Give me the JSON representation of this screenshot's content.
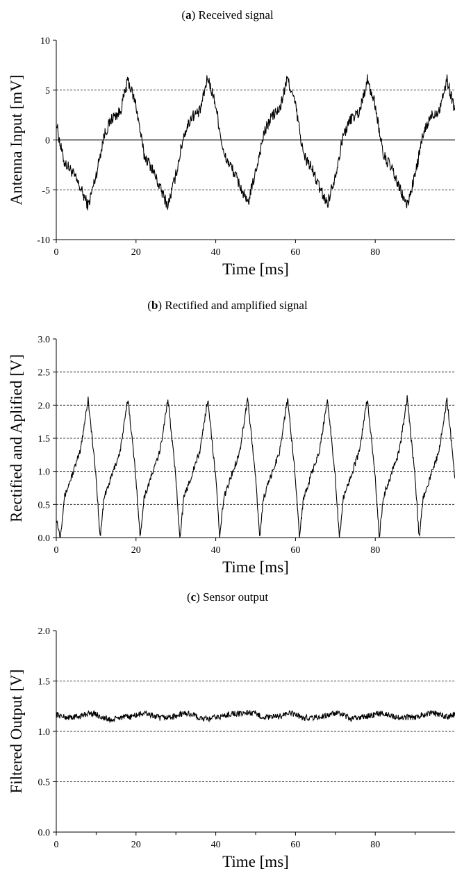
{
  "chart_data": [
    {
      "id": "a",
      "type": "line",
      "title_letter": "a",
      "title_text": "Received signal",
      "xlabel": "Time [ms]",
      "ylabel": "Antenna Input [mV]",
      "xlim": [
        0,
        100
      ],
      "ylim": [
        -10,
        10
      ],
      "xticks": [
        "0",
        "20",
        "40",
        "60",
        "80"
      ],
      "xtick_values": [
        0,
        20,
        40,
        60,
        80
      ],
      "yticks": [
        "-10",
        "-5",
        "0",
        "5",
        "10"
      ],
      "ytick_values": [
        -10,
        -5,
        0,
        5,
        10
      ],
      "dashed_grid_at": [
        -5,
        5
      ],
      "solid_line_at": [
        0
      ],
      "noisy": true,
      "noise_amplitude": 0.6,
      "series": [
        {
          "x": [
            0,
            1,
            2,
            4,
            6,
            8,
            10,
            12,
            14,
            16,
            18,
            20,
            22,
            24,
            26,
            28,
            30,
            32,
            34,
            36,
            38,
            40,
            42,
            44,
            46,
            48,
            50,
            52,
            54,
            56,
            58,
            60,
            62,
            64,
            66,
            68,
            70,
            72,
            74,
            76,
            78,
            80,
            82,
            84,
            86,
            88,
            90,
            92,
            94,
            96,
            98,
            100
          ],
          "y": [
            1.8,
            -0.5,
            -2.2,
            -3.2,
            -4.8,
            -6.6,
            -3.5,
            0.5,
            2.2,
            2.8,
            6.0,
            3.5,
            -1.5,
            -2.8,
            -4.8,
            -6.6,
            -3.5,
            0.5,
            2.4,
            2.8,
            6.3,
            3.5,
            -1.5,
            -2.8,
            -4.5,
            -6.5,
            -3.2,
            0.5,
            2.4,
            3.0,
            6.2,
            3.5,
            -1.5,
            -2.8,
            -4.8,
            -6.4,
            -3.5,
            0.5,
            2.2,
            2.8,
            6.0,
            3.5,
            -1.5,
            -2.8,
            -4.8,
            -6.6,
            -3.5,
            0.5,
            2.4,
            3.0,
            6.0,
            3.0
          ]
        }
      ]
    },
    {
      "id": "b",
      "type": "line",
      "title_letter": "b",
      "title_text": "Rectified and amplified signal",
      "xlabel": "Time [ms]",
      "ylabel": "Rectified and Aplified [V]",
      "xlim": [
        0,
        100
      ],
      "ylim": [
        0,
        3
      ],
      "xticks": [
        "0",
        "20",
        "40",
        "60",
        "80"
      ],
      "xtick_values": [
        0,
        20,
        40,
        60,
        80
      ],
      "yticks": [
        "0.0",
        "0.5",
        "1.0",
        "1.5",
        "2.0",
        "2.5",
        "3.0"
      ],
      "ytick_values": [
        0,
        0.5,
        1,
        1.5,
        2,
        2.5,
        3
      ],
      "dashed_grid_at": [
        0.5,
        1.0,
        1.5,
        2.0,
        2.5
      ],
      "solid_line_at": [],
      "noisy": true,
      "noise_amplitude": 0.05,
      "series": [
        {
          "x": [
            0,
            1,
            2,
            4,
            6,
            8,
            10,
            11,
            12,
            14,
            16,
            18,
            20,
            21,
            22,
            24,
            26,
            28,
            30,
            31,
            32,
            34,
            36,
            38,
            40,
            41,
            42,
            44,
            46,
            48,
            50,
            51,
            52,
            54,
            56,
            58,
            60,
            61,
            62,
            64,
            66,
            68,
            70,
            71,
            72,
            74,
            76,
            78,
            80,
            81,
            82,
            84,
            86,
            88,
            90,
            91,
            92,
            94,
            96,
            98,
            100
          ],
          "y": [
            0.3,
            0.0,
            0.6,
            0.95,
            1.3,
            2.1,
            0.9,
            0.0,
            0.6,
            0.95,
            1.3,
            2.1,
            0.9,
            0.0,
            0.6,
            0.95,
            1.3,
            2.1,
            0.9,
            0.0,
            0.6,
            0.95,
            1.3,
            2.1,
            0.9,
            0.0,
            0.6,
            0.95,
            1.3,
            2.1,
            0.9,
            0.0,
            0.6,
            0.95,
            1.3,
            2.1,
            0.9,
            0.0,
            0.6,
            0.95,
            1.3,
            2.1,
            0.9,
            0.0,
            0.6,
            0.95,
            1.3,
            2.1,
            0.9,
            0.0,
            0.6,
            0.95,
            1.3,
            2.1,
            0.9,
            0.0,
            0.6,
            0.95,
            1.3,
            2.1,
            0.9
          ]
        }
      ]
    },
    {
      "id": "c",
      "type": "line",
      "title_letter": "c",
      "title_text": "Sensor output",
      "xlabel": "Time [ms]",
      "ylabel": "Filtered Output [V]",
      "xlim": [
        0,
        100
      ],
      "ylim": [
        0,
        2
      ],
      "xticks": [
        "0",
        "20",
        "40",
        "60",
        "80"
      ],
      "xtick_values": [
        0,
        20,
        40,
        60,
        80
      ],
      "yticks": [
        "0.0",
        "0.5",
        "1.0",
        "1.5",
        "2.0"
      ],
      "ytick_values": [
        0,
        0.5,
        1,
        1.5,
        2
      ],
      "minor_x_ticks": true,
      "dashed_grid_at": [
        0.5,
        1.0,
        1.5
      ],
      "solid_line_at": [],
      "noisy": true,
      "noise_amplitude": 0.03,
      "series": [
        {
          "x": [
            0,
            2,
            4,
            6,
            8,
            10,
            12,
            14,
            16,
            18,
            20,
            22,
            24,
            26,
            28,
            30,
            32,
            34,
            36,
            38,
            40,
            42,
            44,
            46,
            48,
            50,
            52,
            54,
            56,
            58,
            60,
            62,
            64,
            66,
            68,
            70,
            72,
            74,
            76,
            78,
            80,
            82,
            84,
            86,
            88,
            90,
            92,
            94,
            96,
            98,
            100
          ],
          "y": [
            1.17,
            1.14,
            1.14,
            1.15,
            1.18,
            1.17,
            1.13,
            1.11,
            1.14,
            1.14,
            1.16,
            1.18,
            1.16,
            1.13,
            1.14,
            1.15,
            1.18,
            1.17,
            1.13,
            1.12,
            1.14,
            1.15,
            1.18,
            1.17,
            1.19,
            1.17,
            1.14,
            1.14,
            1.15,
            1.18,
            1.17,
            1.13,
            1.14,
            1.14,
            1.16,
            1.18,
            1.16,
            1.12,
            1.14,
            1.15,
            1.17,
            1.18,
            1.16,
            1.13,
            1.14,
            1.14,
            1.17,
            1.18,
            1.17,
            1.14,
            1.17
          ]
        }
      ]
    }
  ]
}
